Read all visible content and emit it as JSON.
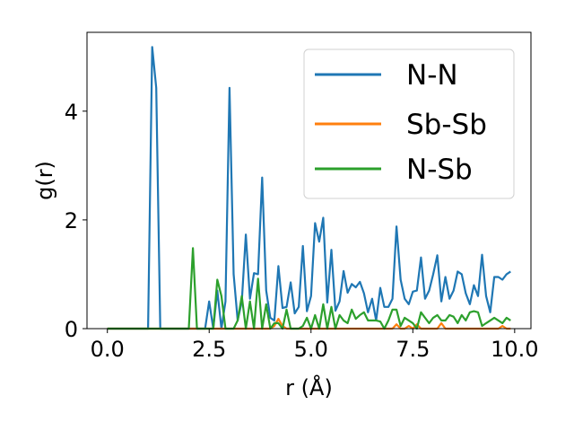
{
  "chart_data": {
    "type": "line",
    "title": "",
    "xlabel": "r (Å)",
    "ylabel": "g(r)",
    "xlim": [
      -0.5,
      10.4
    ],
    "ylim": [
      0,
      5.45
    ],
    "xticks": [
      0.0,
      2.5,
      5.0,
      7.5,
      10.0
    ],
    "xtick_labels": [
      "0.0",
      "2.5",
      "5.0",
      "7.5",
      "10.0"
    ],
    "yticks": [
      0,
      2,
      4
    ],
    "ytick_labels": [
      "0",
      "2",
      "4"
    ],
    "legend_position": "top-right",
    "grid": false,
    "series": [
      {
        "name": "N-N",
        "color": "#1f77b4",
        "x": [
          0.0,
          1.0,
          1.1,
          1.2,
          1.3,
          1.4,
          2.4,
          2.5,
          2.6,
          2.7,
          2.8,
          2.9,
          3.0,
          3.1,
          3.2,
          3.3,
          3.4,
          3.5,
          3.6,
          3.7,
          3.8,
          3.9,
          4.0,
          4.1,
          4.2,
          4.3,
          4.4,
          4.5,
          4.6,
          4.7,
          4.8,
          4.9,
          5.0,
          5.1,
          5.2,
          5.3,
          5.4,
          5.5,
          5.6,
          5.7,
          5.8,
          5.9,
          6.0,
          6.1,
          6.2,
          6.3,
          6.4,
          6.5,
          6.6,
          6.7,
          6.8,
          6.9,
          7.0,
          7.1,
          7.2,
          7.3,
          7.4,
          7.5,
          7.6,
          7.7,
          7.8,
          7.9,
          8.0,
          8.1,
          8.2,
          8.3,
          8.4,
          8.5,
          8.6,
          8.7,
          8.8,
          8.9,
          9.0,
          9.1,
          9.2,
          9.3,
          9.4,
          9.5,
          9.6,
          9.7,
          9.8,
          9.9
        ],
        "values": [
          0.0,
          0.0,
          5.18,
          4.43,
          0.0,
          0.0,
          0.0,
          0.5,
          0.0,
          0.7,
          0.0,
          0.5,
          4.43,
          1.0,
          0.15,
          0.5,
          1.73,
          0.55,
          1.02,
          1.0,
          2.78,
          0.7,
          0.2,
          0.15,
          1.15,
          0.38,
          0.4,
          0.85,
          0.28,
          0.4,
          1.52,
          0.32,
          0.6,
          1.94,
          1.6,
          2.04,
          0.48,
          1.45,
          0.33,
          0.5,
          1.06,
          0.66,
          0.82,
          0.76,
          0.86,
          0.65,
          0.3,
          0.55,
          0.15,
          0.75,
          0.4,
          0.4,
          0.55,
          1.88,
          0.9,
          0.55,
          0.45,
          0.68,
          0.7,
          1.31,
          0.55,
          0.7,
          1.0,
          1.35,
          0.5,
          0.95,
          0.55,
          0.7,
          1.05,
          1.0,
          0.65,
          0.45,
          0.8,
          0.6,
          1.36,
          0.6,
          0.3,
          0.95,
          0.95,
          0.9,
          1.0,
          1.05
        ]
      },
      {
        "name": "Sb-Sb",
        "color": "#ff7f0e",
        "x": [
          0.0,
          4.0,
          4.1,
          4.2,
          4.3,
          4.4,
          7.0,
          7.1,
          7.2,
          7.3,
          7.4,
          7.5,
          7.6,
          7.7,
          8.1,
          8.2,
          8.3,
          9.6,
          9.7,
          9.8,
          9.9
        ],
        "values": [
          0.0,
          0.0,
          0.05,
          0.18,
          0.05,
          0.0,
          0.0,
          0.08,
          0.0,
          0.0,
          0.05,
          0.0,
          0.08,
          0.0,
          0.0,
          0.1,
          0.0,
          0.0,
          0.05,
          0.0,
          0.0
        ]
      },
      {
        "name": "N-Sb",
        "color": "#2ca02c",
        "x": [
          0.0,
          1.9,
          2.0,
          2.1,
          2.2,
          2.3,
          2.4,
          2.5,
          2.6,
          2.7,
          2.8,
          2.9,
          3.0,
          3.1,
          3.2,
          3.3,
          3.4,
          3.5,
          3.6,
          3.7,
          3.8,
          3.9,
          4.0,
          4.1,
          4.2,
          4.3,
          4.4,
          4.5,
          4.6,
          4.7,
          4.8,
          4.9,
          5.0,
          5.1,
          5.2,
          5.3,
          5.4,
          5.5,
          5.6,
          5.7,
          5.8,
          5.9,
          6.0,
          6.1,
          6.2,
          6.3,
          6.4,
          6.5,
          6.6,
          6.7,
          6.8,
          6.9,
          7.0,
          7.1,
          7.2,
          7.3,
          7.4,
          7.5,
          7.6,
          7.7,
          7.8,
          7.9,
          8.0,
          8.1,
          8.2,
          8.3,
          8.4,
          8.5,
          8.6,
          8.7,
          8.8,
          8.9,
          9.0,
          9.1,
          9.2,
          9.3,
          9.4,
          9.5,
          9.6,
          9.7,
          9.8,
          9.9
        ],
        "values": [
          0.0,
          0.0,
          0.0,
          1.48,
          0.0,
          0.0,
          0.0,
          0.0,
          0.0,
          0.9,
          0.6,
          0.0,
          0.0,
          0.0,
          0.15,
          0.6,
          0.0,
          0.5,
          0.0,
          0.92,
          0.0,
          0.45,
          0.0,
          0.1,
          0.1,
          0.0,
          0.35,
          0.0,
          0.0,
          0.0,
          0.05,
          0.2,
          0.0,
          0.25,
          0.0,
          0.45,
          0.0,
          0.4,
          0.0,
          0.25,
          0.15,
          0.1,
          0.35,
          0.18,
          0.25,
          0.3,
          0.15,
          0.15,
          0.15,
          0.13,
          0.0,
          0.15,
          0.35,
          0.35,
          0.05,
          0.2,
          0.15,
          0.1,
          0.0,
          0.3,
          0.2,
          0.1,
          0.2,
          0.25,
          0.15,
          0.15,
          0.25,
          0.22,
          0.1,
          0.25,
          0.15,
          0.3,
          0.32,
          0.3,
          0.05,
          0.1,
          0.15,
          0.2,
          0.15,
          0.1,
          0.2,
          0.15
        ]
      }
    ]
  }
}
